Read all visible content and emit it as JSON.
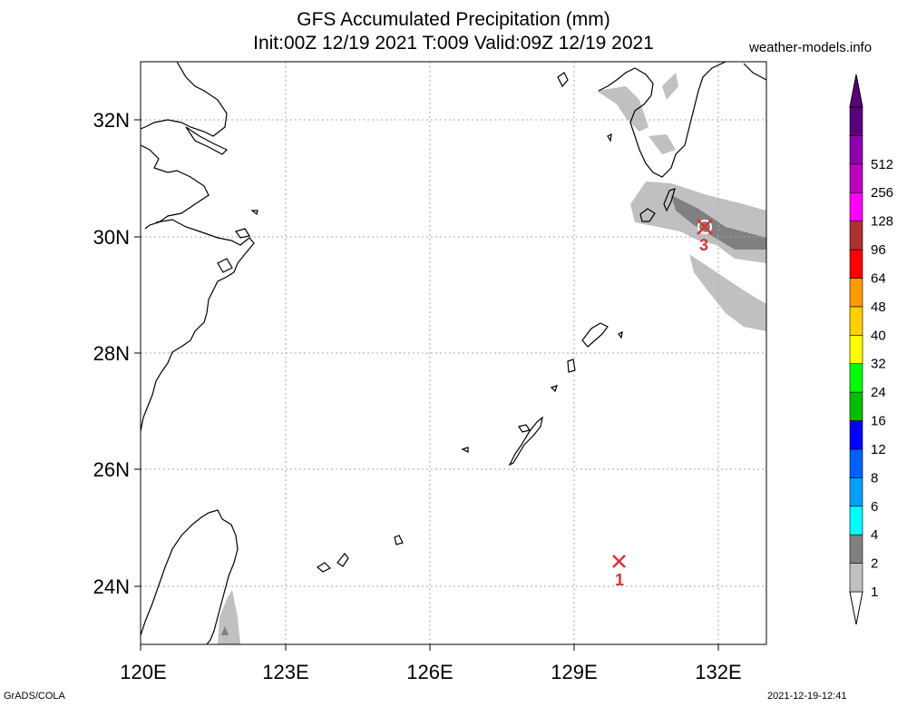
{
  "title_line1": "GFS Accumulated Precipitation (mm)",
  "title_line2": "Init:00Z 12/19 2021 T:009 Valid:09Z 12/19 2021",
  "site": "weather-models.info",
  "footer_left": "GrADS/COLA",
  "footer_right": "2021-12-19-12:41",
  "map": {
    "lon_range": [
      120,
      133
    ],
    "lat_range": [
      23,
      33
    ],
    "x_ticks": [
      "120E",
      "123E",
      "126E",
      "129E",
      "132E"
    ],
    "y_ticks": [
      "32N",
      "30N",
      "28N",
      "26N",
      "24N"
    ],
    "grid": true,
    "markers": [
      {
        "label": "1",
        "lon": 130.0,
        "lat": 24.4
      },
      {
        "label": "3",
        "lon": 131.8,
        "lat": 30.2
      }
    ]
  },
  "colorbar": {
    "levels": [
      "1",
      "2",
      "4",
      "6",
      "8",
      "12",
      "16",
      "24",
      "32",
      "40",
      "48",
      "64",
      "96",
      "128",
      "256",
      "512"
    ],
    "colors": [
      "#c0c0c0",
      "#808080",
      "#00ffff",
      "#00a0ff",
      "#0060ff",
      "#0000ff",
      "#00c000",
      "#00ff00",
      "#ffff00",
      "#ffd000",
      "#ff9900",
      "#ff0000",
      "#b03030",
      "#ff00ff",
      "#c000c0",
      "#9000b0",
      "#5a007a"
    ]
  }
}
